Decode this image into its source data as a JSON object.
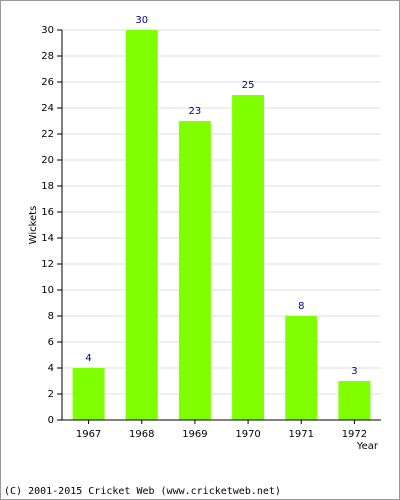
{
  "chart_data": {
    "type": "bar",
    "categories": [
      "1967",
      "1968",
      "1969",
      "1970",
      "1971",
      "1972"
    ],
    "values": [
      4,
      30,
      23,
      25,
      8,
      3
    ],
    "color": "#80ff00",
    "value_label_color": "#000080",
    "ylim": [
      0,
      30
    ],
    "yticks": [
      0,
      2,
      4,
      6,
      8,
      10,
      12,
      14,
      16,
      18,
      20,
      22,
      24,
      26,
      28,
      30
    ],
    "grid": true,
    "y_label": "Wickets",
    "x_label": "Year",
    "footer": "(C) 2001-2015 Cricket Web (www.cricketweb.net)"
  }
}
